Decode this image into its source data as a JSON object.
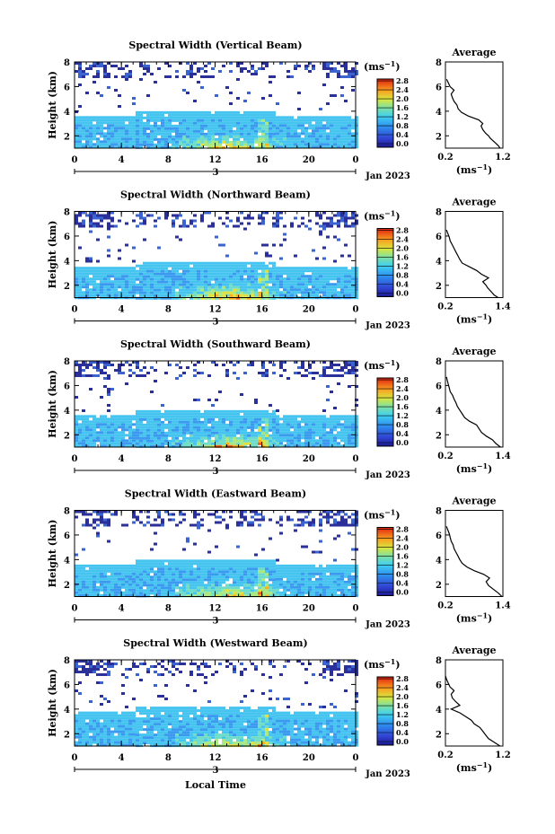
{
  "figure": {
    "x_axis_title": "Local Time",
    "date_label": "Jan 2023",
    "day_label": "3",
    "colorbar_unit": "(ms",
    "unit_exp": "−1",
    "colorbar_close": ")",
    "avg_title": "Average",
    "avg_unit": "(ms",
    "avg_unit_close": ")",
    "y_axis_label": "Height (km)"
  },
  "chart_data": [
    {
      "type": "heatmap",
      "title": "Spectral Width (Vertical Beam)",
      "ylabel": "Height (km)",
      "xlim": [
        0,
        24
      ],
      "ylim": [
        1,
        8
      ],
      "x_ticks": [
        "0",
        "4",
        "8",
        "12",
        "16",
        "20",
        "0"
      ],
      "y_ticks": [
        "2",
        "4",
        "6",
        "8"
      ],
      "colorbar": {
        "range": [
          0,
          2.8
        ],
        "ticks": [
          "0.0",
          "0.4",
          "0.8",
          "1.2",
          "1.6",
          "2.0",
          "2.4",
          "2.8"
        ]
      },
      "layer_top_km": 3.6,
      "average_profile": {
        "xlim": [
          0.2,
          1.2
        ],
        "x_ticks": [
          "0.2",
          "1.2"
        ],
        "y_ticks": [
          "2",
          "4",
          "6",
          "8"
        ],
        "height_km": [
          1.0,
          1.2,
          1.5,
          1.8,
          2.0,
          2.2,
          2.5,
          2.8,
          3.0,
          3.3,
          3.6,
          3.9,
          4.2,
          4.5,
          4.8,
          5.1,
          5.4,
          5.7,
          6.0,
          6.3,
          6.6
        ],
        "width_ms": [
          1.15,
          1.12,
          1.05,
          0.98,
          0.95,
          0.9,
          0.85,
          0.82,
          0.85,
          0.78,
          0.6,
          0.48,
          0.42,
          0.4,
          0.35,
          0.32,
          0.3,
          0.35,
          0.28,
          0.25,
          0.22
        ]
      }
    },
    {
      "type": "heatmap",
      "title": "Spectral Width (Northward Beam)",
      "ylabel": "Height (km)",
      "xlim": [
        0,
        24
      ],
      "ylim": [
        1,
        8
      ],
      "x_ticks": [
        "0",
        "4",
        "8",
        "12",
        "16",
        "20",
        "0"
      ],
      "y_ticks": [
        "2",
        "4",
        "6",
        "8"
      ],
      "colorbar": {
        "range": [
          0,
          2.8
        ],
        "ticks": [
          "0.0",
          "0.4",
          "0.8",
          "1.2",
          "1.6",
          "2.0",
          "2.4",
          "2.8"
        ]
      },
      "layer_top_km": 3.5,
      "average_profile": {
        "xlim": [
          0.2,
          1.4
        ],
        "x_ticks": [
          "0.2",
          "1.4"
        ],
        "y_ticks": [
          "2",
          "4",
          "6",
          "8"
        ],
        "height_km": [
          1.0,
          1.2,
          1.5,
          1.8,
          2.0,
          2.3,
          2.6,
          2.9,
          3.2,
          3.5,
          3.8,
          4.1,
          4.4,
          4.7,
          5.0,
          5.3,
          5.6,
          5.9,
          6.2,
          6.5
        ],
        "width_ms": [
          1.3,
          1.22,
          1.15,
          1.08,
          1.05,
          0.98,
          1.1,
          0.95,
          0.85,
          0.7,
          0.55,
          0.5,
          0.46,
          0.42,
          0.38,
          0.34,
          0.3,
          0.28,
          0.25,
          0.22
        ]
      }
    },
    {
      "type": "heatmap",
      "title": "Spectral Width (Southward Beam)",
      "ylabel": "Height (km)",
      "xlim": [
        0,
        24
      ],
      "ylim": [
        1,
        8
      ],
      "x_ticks": [
        "0",
        "4",
        "8",
        "12",
        "16",
        "20",
        "0"
      ],
      "y_ticks": [
        "2",
        "4",
        "6",
        "8"
      ],
      "colorbar": {
        "range": [
          0,
          2.8
        ],
        "ticks": [
          "0.0",
          "0.4",
          "0.8",
          "1.2",
          "1.6",
          "2.0",
          "2.4",
          "2.8"
        ]
      },
      "layer_top_km": 3.6,
      "average_profile": {
        "xlim": [
          0.2,
          1.4
        ],
        "x_ticks": [
          "0.2",
          "1.4"
        ],
        "y_ticks": [
          "2",
          "4",
          "6",
          "8"
        ],
        "height_km": [
          1.0,
          1.3,
          1.6,
          1.9,
          2.2,
          2.5,
          2.8,
          3.1,
          3.4,
          3.7,
          4.0,
          4.3,
          4.6,
          4.9,
          5.2,
          5.5,
          5.8,
          6.1,
          6.4,
          6.7
        ],
        "width_ms": [
          1.35,
          1.25,
          1.18,
          1.05,
          0.95,
          0.9,
          0.85,
          0.7,
          0.6,
          0.55,
          0.5,
          0.45,
          0.42,
          0.38,
          0.35,
          0.3,
          0.28,
          0.26,
          0.24,
          0.22
        ]
      }
    },
    {
      "type": "heatmap",
      "title": "Spectral Width (Eastward Beam)",
      "ylabel": "Height (km)",
      "xlim": [
        0,
        24
      ],
      "ylim": [
        1,
        8
      ],
      "x_ticks": [
        "0",
        "4",
        "8",
        "12",
        "16",
        "20",
        "0"
      ],
      "y_ticks": [
        "2",
        "4",
        "6",
        "8"
      ],
      "colorbar": {
        "range": [
          0,
          2.8
        ],
        "ticks": [
          "0.0",
          "0.4",
          "0.8",
          "1.2",
          "1.6",
          "2.0",
          "2.4",
          "2.8"
        ]
      },
      "layer_top_km": 3.6,
      "average_profile": {
        "xlim": [
          0.2,
          1.4
        ],
        "x_ticks": [
          "0.2",
          "1.4"
        ],
        "y_ticks": [
          "2",
          "4",
          "6",
          "8"
        ],
        "height_km": [
          1.0,
          1.3,
          1.6,
          1.9,
          2.2,
          2.5,
          2.8,
          3.1,
          3.4,
          3.7,
          4.0,
          4.3,
          4.6,
          4.9,
          5.2,
          5.5,
          5.8,
          6.1,
          6.4,
          6.7
        ],
        "width_ms": [
          1.38,
          1.3,
          1.2,
          1.1,
          1.05,
          1.12,
          1.0,
          0.8,
          0.65,
          0.55,
          0.5,
          0.46,
          0.42,
          0.38,
          0.36,
          0.32,
          0.3,
          0.28,
          0.25,
          0.22
        ]
      }
    },
    {
      "type": "heatmap",
      "title": "Spectral Width (Westward Beam)",
      "ylabel": "Height (km)",
      "xlim": [
        0,
        24
      ],
      "ylim": [
        1,
        8
      ],
      "x_ticks": [
        "0",
        "4",
        "8",
        "12",
        "16",
        "20",
        "0"
      ],
      "y_ticks": [
        "2",
        "4",
        "6",
        "8"
      ],
      "colorbar": {
        "range": [
          0,
          2.8
        ],
        "ticks": [
          "0.0",
          "0.4",
          "0.8",
          "1.2",
          "1.6",
          "2.0",
          "2.4",
          "2.8"
        ]
      },
      "layer_top_km": 3.8,
      "average_profile": {
        "xlim": [
          0.2,
          1.2
        ],
        "x_ticks": [
          "0.2",
          "1.2"
        ],
        "y_ticks": [
          "2",
          "4",
          "6",
          "8"
        ],
        "height_km": [
          1.0,
          1.3,
          1.6,
          1.9,
          2.2,
          2.5,
          2.8,
          3.1,
          3.4,
          3.7,
          4.0,
          4.3,
          4.6,
          4.9,
          5.2,
          5.5,
          5.8,
          6.1,
          6.4,
          6.7
        ],
        "width_ms": [
          1.15,
          1.05,
          0.95,
          0.9,
          0.85,
          0.8,
          0.7,
          0.65,
          0.55,
          0.45,
          0.3,
          0.45,
          0.38,
          0.32,
          0.3,
          0.35,
          0.28,
          0.25,
          0.22,
          0.2
        ]
      }
    }
  ]
}
